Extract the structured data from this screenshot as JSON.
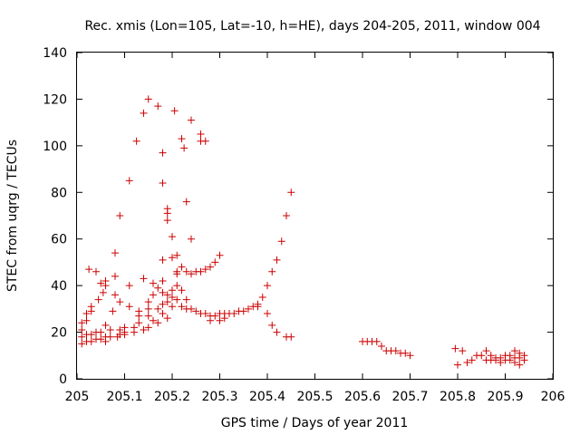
{
  "chart_data": {
    "type": "scatter",
    "title": "Rec. xmis (Lon=105, Lat=-10, h=HE), days 204-205, 2011, window 004",
    "xlabel": "GPS time / Days of year 2011",
    "ylabel": "STEC from uqrg / TECUs",
    "xlim": [
      205,
      206
    ],
    "ylim": [
      0,
      140
    ],
    "xticks": [
      "205",
      "205.1",
      "205.2",
      "205.3",
      "205.4",
      "205.5",
      "205.6",
      "205.7",
      "205.8",
      "205.9",
      "206"
    ],
    "yticks": [
      "0",
      "20",
      "40",
      "60",
      "80",
      "100",
      "120",
      "140"
    ],
    "grid": false,
    "marker": "+",
    "color": "#cc0000",
    "points": [
      [
        205.01,
        15
      ],
      [
        205.01,
        18
      ],
      [
        205.01,
        21
      ],
      [
        205.01,
        24
      ],
      [
        205.02,
        16
      ],
      [
        205.02,
        19
      ],
      [
        205.02,
        25
      ],
      [
        205.02,
        28
      ],
      [
        205.025,
        47
      ],
      [
        205.03,
        16
      ],
      [
        205.03,
        19
      ],
      [
        205.03,
        29
      ],
      [
        205.03,
        31
      ],
      [
        205.04,
        46
      ],
      [
        205.04,
        17
      ],
      [
        205.04,
        20
      ],
      [
        205.045,
        34
      ],
      [
        205.05,
        41
      ],
      [
        205.05,
        17
      ],
      [
        205.05,
        20
      ],
      [
        205.055,
        37
      ],
      [
        205.06,
        40
      ],
      [
        205.06,
        42
      ],
      [
        205.06,
        23
      ],
      [
        205.06,
        18
      ],
      [
        205.06,
        16
      ],
      [
        205.07,
        18
      ],
      [
        205.07,
        21
      ],
      [
        205.075,
        29
      ],
      [
        205.08,
        54
      ],
      [
        205.08,
        44
      ],
      [
        205.08,
        36
      ],
      [
        205.085,
        18
      ],
      [
        205.09,
        19
      ],
      [
        205.09,
        21
      ],
      [
        205.09,
        33
      ],
      [
        205.09,
        70
      ],
      [
        205.1,
        19
      ],
      [
        205.1,
        22
      ],
      [
        205.1,
        20
      ],
      [
        205.11,
        85
      ],
      [
        205.11,
        40
      ],
      [
        205.11,
        31
      ],
      [
        205.12,
        22
      ],
      [
        205.12,
        20
      ],
      [
        205.125,
        102
      ],
      [
        205.13,
        27
      ],
      [
        205.13,
        29
      ],
      [
        205.13,
        24
      ],
      [
        205.14,
        114
      ],
      [
        205.14,
        43
      ],
      [
        205.14,
        21
      ],
      [
        205.15,
        120
      ],
      [
        205.15,
        33
      ],
      [
        205.15,
        30
      ],
      [
        205.15,
        27
      ],
      [
        205.15,
        22
      ],
      [
        205.16,
        41
      ],
      [
        205.16,
        36
      ],
      [
        205.16,
        25
      ],
      [
        205.17,
        117
      ],
      [
        205.17,
        39
      ],
      [
        205.17,
        30
      ],
      [
        205.17,
        24
      ],
      [
        205.18,
        97
      ],
      [
        205.18,
        84
      ],
      [
        205.18,
        51
      ],
      [
        205.18,
        42
      ],
      [
        205.18,
        37
      ],
      [
        205.18,
        32
      ],
      [
        205.18,
        28
      ],
      [
        205.19,
        73
      ],
      [
        205.19,
        71
      ],
      [
        205.19,
        68
      ],
      [
        205.19,
        36
      ],
      [
        205.19,
        33
      ],
      [
        205.19,
        26
      ],
      [
        205.2,
        61
      ],
      [
        205.2,
        52
      ],
      [
        205.2,
        38
      ],
      [
        205.2,
        35
      ],
      [
        205.2,
        31
      ],
      [
        205.205,
        115
      ],
      [
        205.21,
        53
      ],
      [
        205.21,
        46
      ],
      [
        205.21,
        45
      ],
      [
        205.21,
        40
      ],
      [
        205.21,
        34
      ],
      [
        205.22,
        103
      ],
      [
        205.22,
        48
      ],
      [
        205.22,
        38
      ],
      [
        205.22,
        31
      ],
      [
        205.225,
        99
      ],
      [
        205.23,
        76
      ],
      [
        205.23,
        46
      ],
      [
        205.23,
        34
      ],
      [
        205.23,
        30
      ],
      [
        205.24,
        111
      ],
      [
        205.24,
        60
      ],
      [
        205.24,
        45
      ],
      [
        205.24,
        30
      ],
      [
        205.25,
        46
      ],
      [
        205.25,
        29
      ],
      [
        205.26,
        105
      ],
      [
        205.26,
        102
      ],
      [
        205.26,
        46
      ],
      [
        205.26,
        28
      ],
      [
        205.27,
        102
      ],
      [
        205.27,
        47
      ],
      [
        205.27,
        28
      ],
      [
        205.28,
        48
      ],
      [
        205.28,
        27
      ],
      [
        205.28,
        25
      ],
      [
        205.29,
        50
      ],
      [
        205.29,
        27
      ],
      [
        205.3,
        53
      ],
      [
        205.3,
        28
      ],
      [
        205.3,
        25
      ],
      [
        205.31,
        28
      ],
      [
        205.31,
        26
      ],
      [
        205.32,
        28
      ],
      [
        205.33,
        28
      ],
      [
        205.34,
        29
      ],
      [
        205.35,
        29
      ],
      [
        205.36,
        30
      ],
      [
        205.37,
        31
      ],
      [
        205.38,
        32
      ],
      [
        205.38,
        31
      ],
      [
        205.39,
        35
      ],
      [
        205.4,
        40
      ],
      [
        205.4,
        28
      ],
      [
        205.41,
        46
      ],
      [
        205.41,
        23
      ],
      [
        205.42,
        51
      ],
      [
        205.42,
        20
      ],
      [
        205.43,
        59
      ],
      [
        205.44,
        70
      ],
      [
        205.44,
        18
      ],
      [
        205.45,
        80
      ],
      [
        205.45,
        18
      ],
      [
        205.6,
        16
      ],
      [
        205.61,
        16
      ],
      [
        205.62,
        16
      ],
      [
        205.63,
        16
      ],
      [
        205.64,
        14
      ],
      [
        205.65,
        12
      ],
      [
        205.66,
        12
      ],
      [
        205.67,
        12
      ],
      [
        205.68,
        11
      ],
      [
        205.69,
        11
      ],
      [
        205.7,
        10
      ],
      [
        205.795,
        13
      ],
      [
        205.8,
        6
      ],
      [
        205.81,
        12
      ],
      [
        205.82,
        7
      ],
      [
        205.83,
        8
      ],
      [
        205.84,
        10
      ],
      [
        205.85,
        10
      ],
      [
        205.86,
        12
      ],
      [
        205.86,
        8
      ],
      [
        205.87,
        10
      ],
      [
        205.87,
        8
      ],
      [
        205.88,
        9
      ],
      [
        205.88,
        8
      ],
      [
        205.89,
        9
      ],
      [
        205.89,
        7
      ],
      [
        205.9,
        10
      ],
      [
        205.9,
        8
      ],
      [
        205.91,
        10
      ],
      [
        205.91,
        8
      ],
      [
        205.92,
        12
      ],
      [
        205.92,
        9
      ],
      [
        205.92,
        7
      ],
      [
        205.93,
        11
      ],
      [
        205.93,
        9
      ],
      [
        205.93,
        6
      ],
      [
        205.94,
        10
      ],
      [
        205.94,
        8
      ]
    ]
  }
}
